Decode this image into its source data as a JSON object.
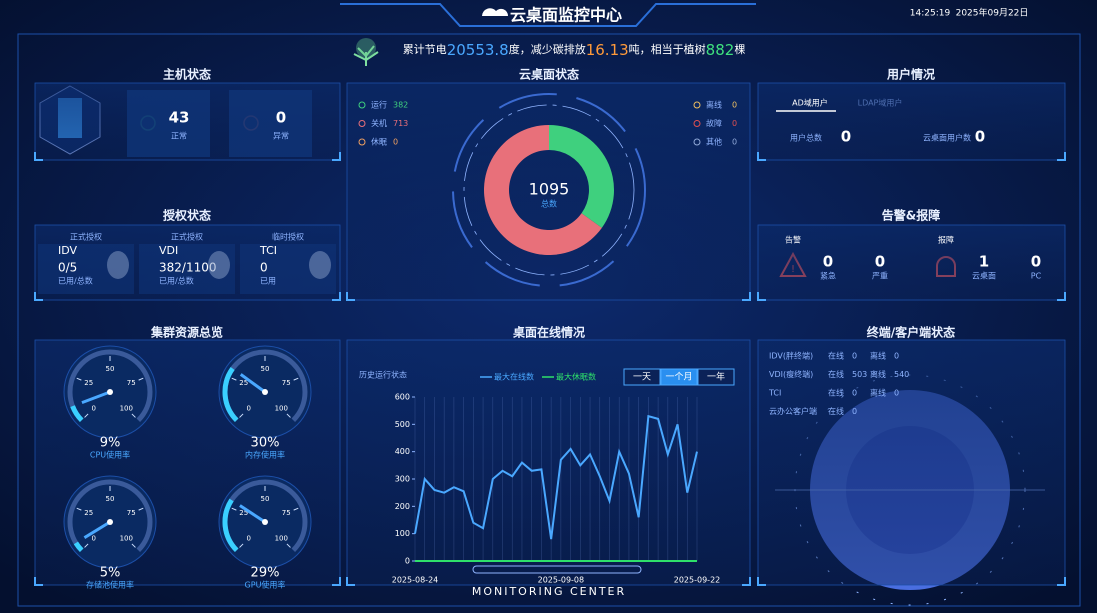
{
  "header": {
    "title": "云桌面监控中心",
    "time": "14:25:19",
    "date": "2025年09月22日"
  },
  "banner": {
    "prefix": "累计节电",
    "power": 20553.8,
    "power_unit": "度，减少碳排放",
    "carbon": 16.13,
    "carbon_unit": "吨，相当于植树",
    "trees": 882,
    "trees_unit": "棵"
  },
  "host_status": {
    "title": "主机状态",
    "items": [
      {
        "value": 43,
        "label": "正常"
      },
      {
        "value": 0,
        "label": "异常"
      }
    ]
  },
  "auth_status": {
    "title": "授权状态",
    "items": [
      {
        "tag": "正式授权",
        "name": "IDV",
        "value": "0/5",
        "caption": "已用/总数"
      },
      {
        "tag": "正式授权",
        "name": "VDI",
        "value": "382/1100",
        "caption": "已用/总数"
      },
      {
        "tag": "临时授权",
        "name": "TCI",
        "value": "0",
        "caption": "已用"
      }
    ]
  },
  "user_status": {
    "title": "用户情况",
    "tabs": [
      "AD域用户",
      "LDAP域用户"
    ],
    "items": [
      {
        "label": "用户总数",
        "value": 0
      },
      {
        "label": "云桌面用户数",
        "value": 0
      }
    ]
  },
  "alarm": {
    "title": "告警&报障",
    "groups": [
      {
        "name": "告警",
        "items": [
          {
            "value": 0,
            "label": "紧急"
          },
          {
            "value": 0,
            "label": "严重"
          }
        ]
      },
      {
        "name": "报障",
        "items": [
          {
            "value": 1,
            "label": "云桌面"
          },
          {
            "value": 0,
            "label": "PC"
          }
        ]
      }
    ]
  },
  "cluster": {
    "title": "集群资源总览"
  },
  "terminal": {
    "title": "终端/客户端状态",
    "online_label": "在线",
    "offline_label": "离线",
    "rows": [
      {
        "name": "IDV(胖终端)",
        "online": 0,
        "offline": 0
      },
      {
        "name": "VDI(瘦终端)",
        "online": 503,
        "offline": 540
      },
      {
        "name": "TCI",
        "online": 0,
        "offline": 0
      },
      {
        "name": "云办公客户端",
        "online": 0
      }
    ]
  },
  "footer": {
    "text": "MONITORING CENTER"
  },
  "chart_data": [
    {
      "type": "pie",
      "title": "云桌面状态",
      "categories": [
        "运行",
        "关机",
        "休眠",
        "离线",
        "故障",
        "其他"
      ],
      "values": [
        382,
        713,
        0,
        0,
        0,
        0
      ],
      "colors": [
        "#3fd07e",
        "#e8707a",
        "#f0a060",
        "#f0c060",
        "#e05050",
        "#8fa8d8"
      ],
      "center_value": 1095,
      "center_label": "总数"
    },
    {
      "type": "line",
      "title": "桌面在线情况",
      "subtitle": "历史运行状态",
      "buttons": [
        "一天",
        "一个月",
        "一年"
      ],
      "selected_button": 1,
      "categories": [
        "2025-08-24",
        null,
        null,
        null,
        null,
        null,
        null,
        null,
        null,
        null,
        null,
        null,
        null,
        null,
        null,
        "2025-09-08",
        null,
        null,
        null,
        null,
        null,
        null,
        null,
        null,
        null,
        null,
        null,
        null,
        null,
        "2025-09-22"
      ],
      "series": [
        {
          "name": "最大在线数",
          "color": "#4aa8ff",
          "values": [
            100,
            300,
            260,
            250,
            270,
            255,
            140,
            120,
            300,
            330,
            310,
            360,
            330,
            335,
            80,
            370,
            410,
            350,
            390,
            310,
            220,
            400,
            320,
            160,
            530,
            520,
            390,
            500,
            250,
            400
          ]
        },
        {
          "name": "最大休眠数",
          "color": "#2ee06a",
          "values": [
            0,
            0,
            0,
            0,
            0,
            0,
            0,
            0,
            0,
            0,
            0,
            0,
            0,
            0,
            0,
            0,
            0,
            0,
            0,
            0,
            0,
            0,
            0,
            0,
            0,
            0,
            0,
            0,
            0,
            0
          ]
        }
      ],
      "ylim": [
        0,
        600
      ],
      "yticks": [
        0,
        100,
        200,
        300,
        400,
        500,
        600
      ],
      "grid": false
    },
    {
      "type": "gauge",
      "title": "CPU使用率",
      "values": [
        9
      ],
      "value_labels": [
        "9%"
      ],
      "ylim": [
        0,
        100
      ],
      "yticks": [
        0,
        25,
        50,
        75,
        100
      ]
    },
    {
      "type": "gauge",
      "title": "内存使用率",
      "values": [
        30
      ],
      "value_labels": [
        "30%"
      ],
      "ylim": [
        0,
        100
      ],
      "yticks": [
        0,
        25,
        50,
        75,
        100
      ]
    },
    {
      "type": "gauge",
      "title": "存储池使用率",
      "values": [
        5
      ],
      "value_labels": [
        "5%"
      ],
      "ylim": [
        0,
        100
      ],
      "yticks": [
        0,
        25,
        50,
        75,
        100
      ]
    },
    {
      "type": "gauge",
      "title": "GPU使用率",
      "values": [
        29
      ],
      "value_labels": [
        "29%"
      ],
      "ylim": [
        0,
        100
      ],
      "yticks": [
        0,
        25,
        50,
        75,
        100
      ]
    }
  ]
}
